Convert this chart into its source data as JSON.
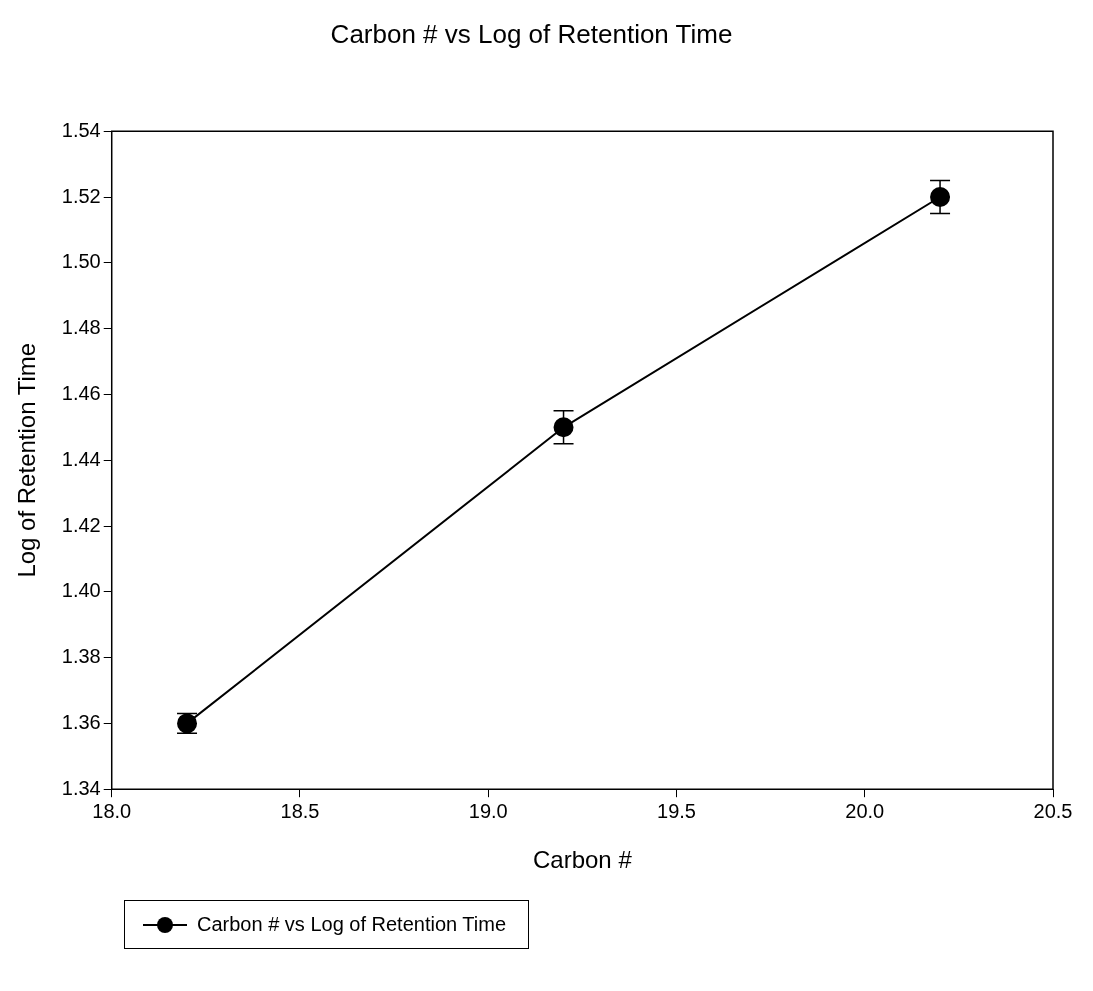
{
  "chart_data": {
    "type": "line",
    "title": "Carbon # vs Log of Retention Time",
    "xlabel": "Carbon #",
    "ylabel": "Log of Retention Time",
    "x": [
      18.2,
      19.2,
      20.2
    ],
    "series": [
      {
        "name": "Carbon # vs Log of Retention Time",
        "color": "#000000",
        "values": [
          1.36,
          1.45,
          1.52
        ],
        "errors": [
          0.003,
          0.005,
          0.005
        ]
      }
    ],
    "xlim": [
      18.0,
      20.5
    ],
    "xticks": [
      {
        "value": 18.0,
        "label": "18.0"
      },
      {
        "value": 18.5,
        "label": "18.5"
      },
      {
        "value": 19.0,
        "label": "19.0"
      },
      {
        "value": 19.5,
        "label": "19.5"
      },
      {
        "value": 20.0,
        "label": "20.0"
      },
      {
        "value": 20.5,
        "label": "20.5"
      }
    ],
    "ylim": [
      1.34,
      1.54
    ],
    "yticks": [
      {
        "value": 1.34,
        "label": "1.34"
      },
      {
        "value": 1.36,
        "label": "1.36"
      },
      {
        "value": 1.38,
        "label": "1.38"
      },
      {
        "value": 1.4,
        "label": "1.40"
      },
      {
        "value": 1.42,
        "label": "1.42"
      },
      {
        "value": 1.44,
        "label": "1.44"
      },
      {
        "value": 1.46,
        "label": "1.46"
      },
      {
        "value": 1.48,
        "label": "1.48"
      },
      {
        "value": 1.5,
        "label": "1.50"
      },
      {
        "value": 1.52,
        "label": "1.52"
      },
      {
        "value": 1.54,
        "label": "1.54"
      }
    ],
    "grid": false,
    "legend": "bottom left",
    "marker": "circle",
    "line_style": "solid"
  }
}
